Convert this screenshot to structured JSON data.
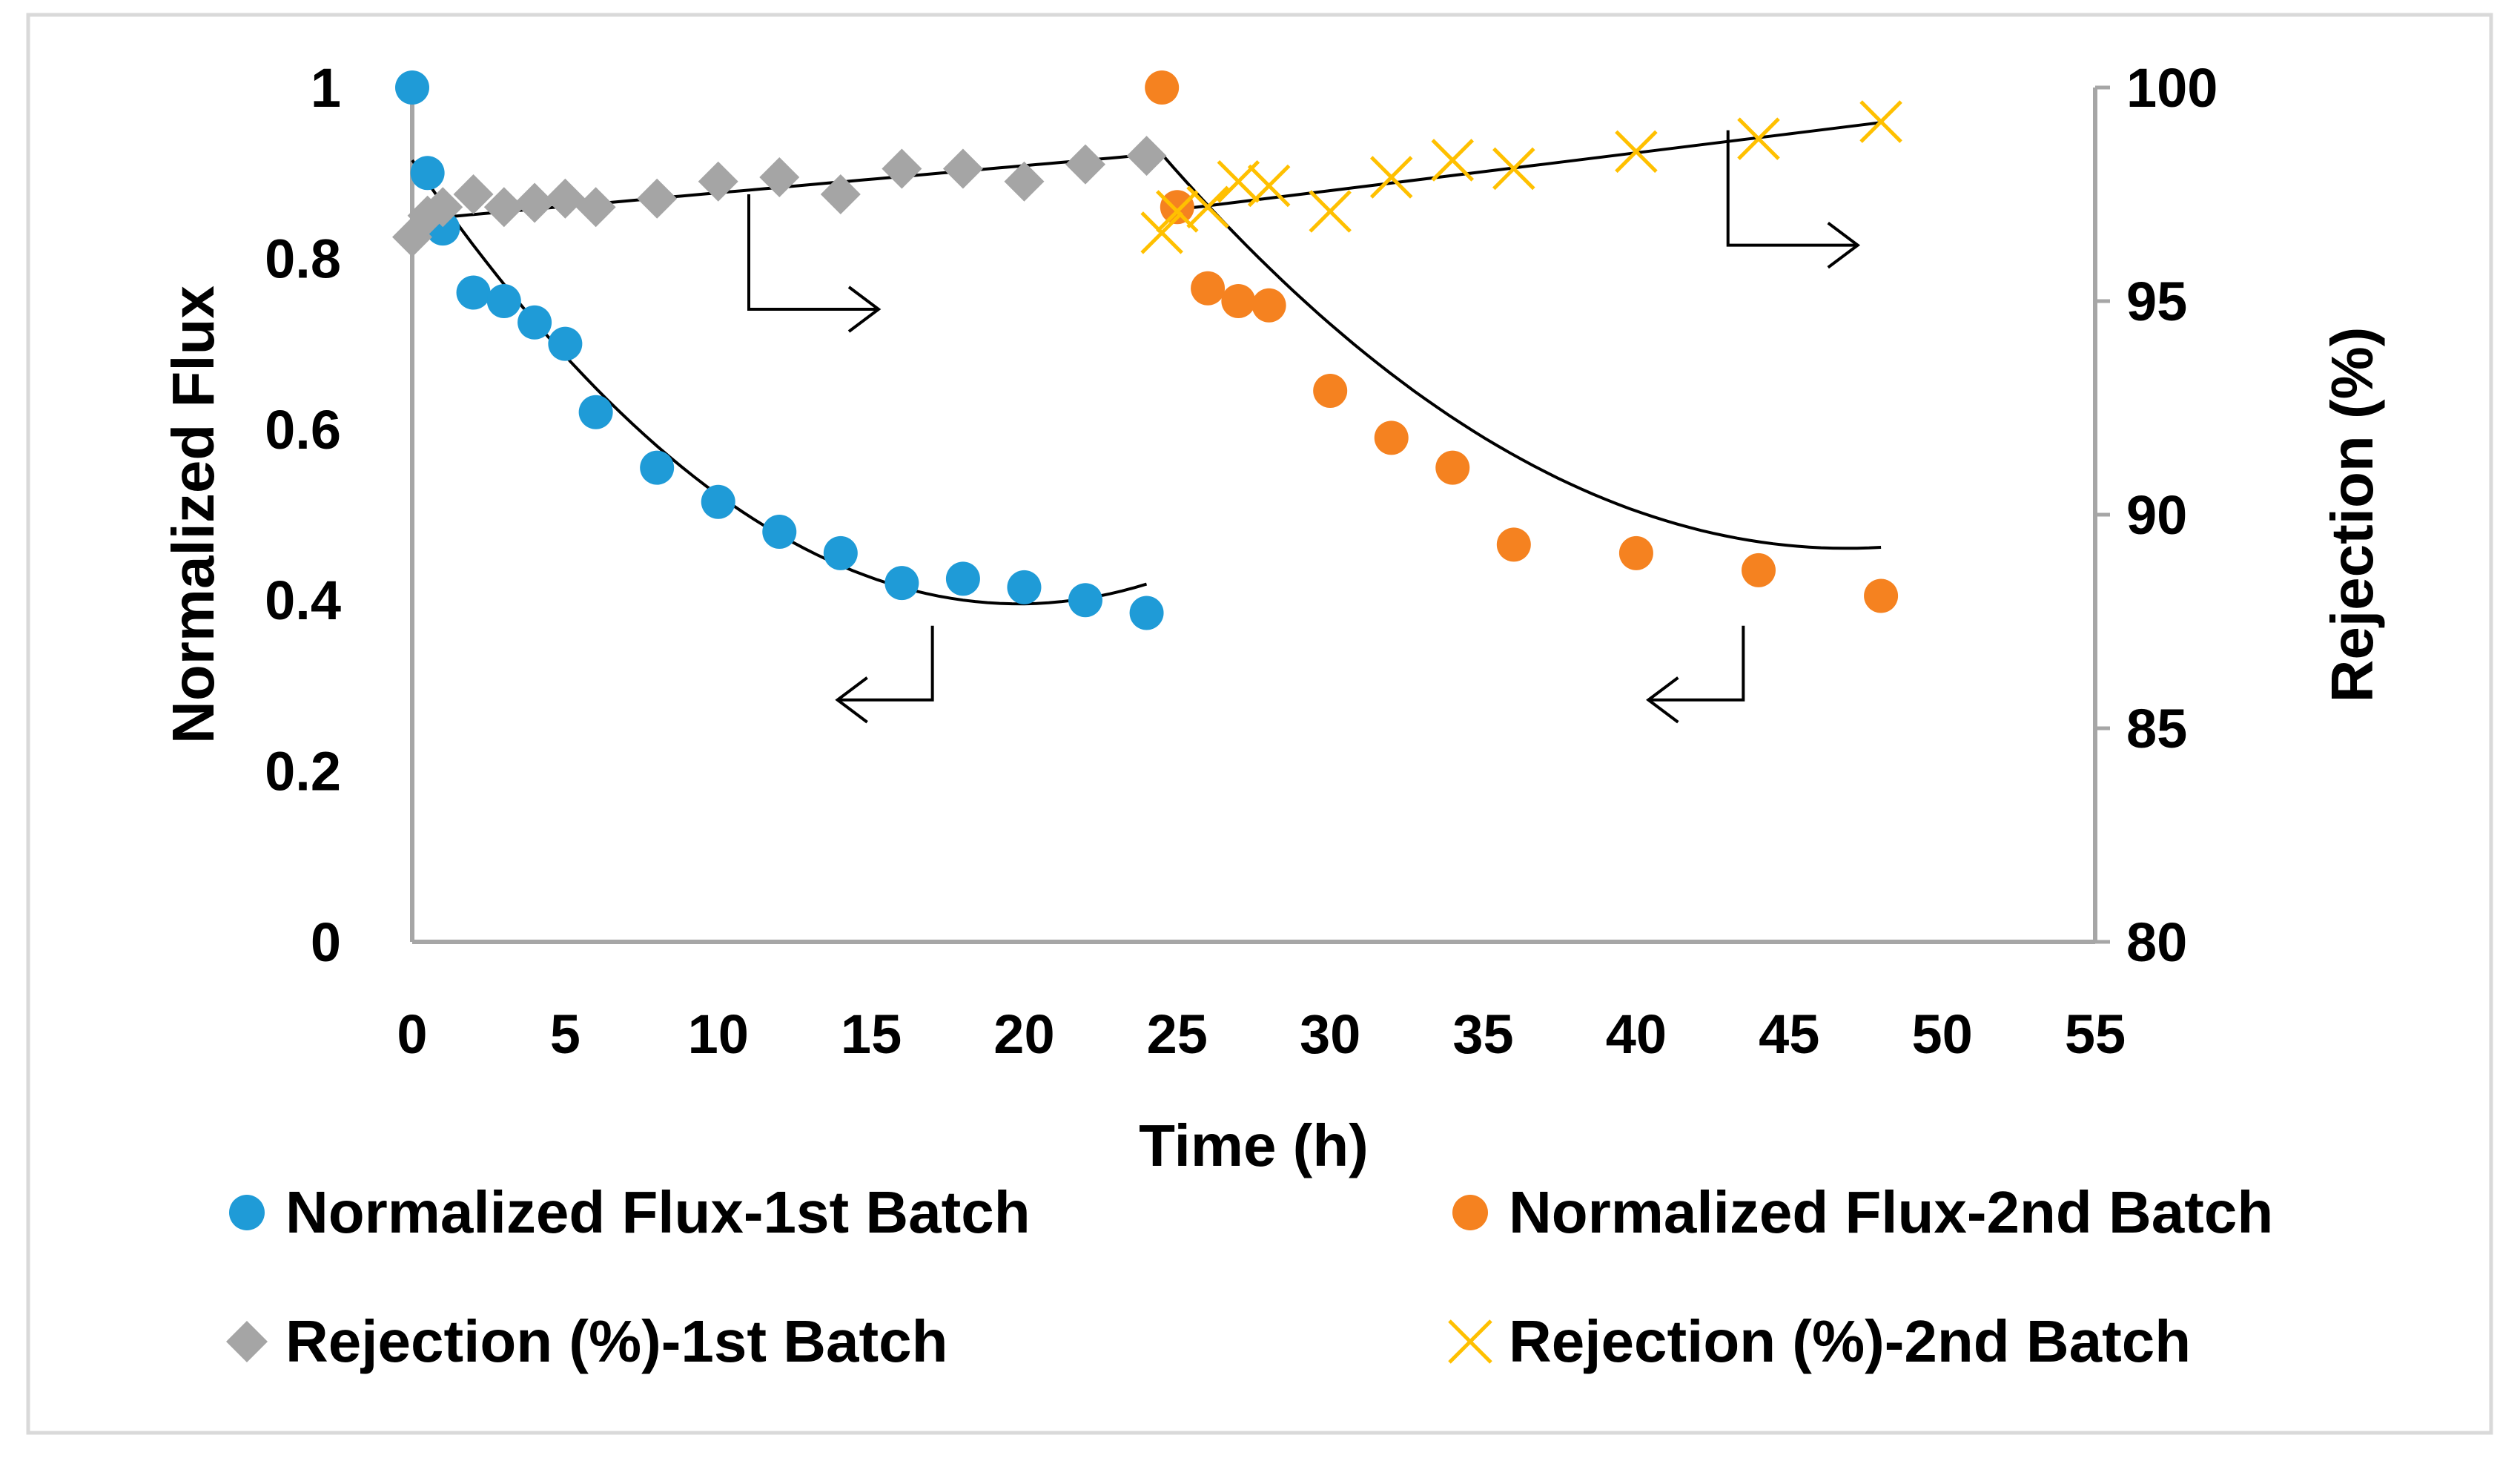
{
  "chart_data": {
    "type": "scatter",
    "xlabel": "Time (h)",
    "ylabel_left": "Normalized Flux",
    "ylabel_right": "Rejection (%)",
    "xlim": [
      0,
      55
    ],
    "ylim_left": [
      0,
      1
    ],
    "ylim_right": [
      80,
      100
    ],
    "x_ticks": [
      "0",
      "5",
      "10",
      "15",
      "20",
      "25",
      "30",
      "35",
      "40",
      "45",
      "50",
      "55"
    ],
    "y_left_ticks": [
      "0",
      "0.2",
      "0.4",
      "0.6",
      "0.8",
      "1"
    ],
    "y_right_ticks": [
      "80",
      "85",
      "90",
      "95",
      "100"
    ],
    "grid": false,
    "legend_position": "bottom",
    "series": [
      {
        "name": "Normalized Flux-1st Batch",
        "axis": "left",
        "marker": "circle",
        "color": "#1F9BD7",
        "x": [
          0,
          0.5,
          1,
          2,
          3,
          4,
          5,
          6,
          8,
          10,
          12,
          14,
          16,
          18,
          20,
          22,
          24
        ],
        "y": [
          1.0,
          0.9,
          0.835,
          0.76,
          0.75,
          0.725,
          0.7,
          0.62,
          0.555,
          0.515,
          0.48,
          0.455,
          0.42,
          0.425,
          0.415,
          0.4,
          0.385
        ]
      },
      {
        "name": "Normalized Flux-2nd Batch",
        "axis": "left",
        "marker": "circle",
        "color": "#F58220",
        "x": [
          24.5,
          25,
          26,
          27,
          28,
          30,
          32,
          34,
          36,
          40,
          44,
          48
        ],
        "y": [
          1.0,
          0.86,
          0.765,
          0.75,
          0.745,
          0.645,
          0.59,
          0.555,
          0.465,
          0.455,
          0.435,
          0.405
        ]
      },
      {
        "name": "Rejection (%)-1st Batch",
        "axis": "right",
        "marker": "diamond",
        "color": "#A5A5A5",
        "x": [
          0,
          0.5,
          1,
          2,
          3,
          4,
          5,
          6,
          8,
          10,
          12,
          14,
          16,
          18,
          20,
          22,
          24
        ],
        "y": [
          96.5,
          97.0,
          97.2,
          97.5,
          97.2,
          97.3,
          97.4,
          97.2,
          97.4,
          97.8,
          97.9,
          97.5,
          98.1,
          98.1,
          97.8,
          98.2,
          98.4
        ]
      },
      {
        "name": "Rejection (%)-2nd Batch",
        "axis": "right",
        "marker": "x",
        "color": "#FFC000",
        "x": [
          24.5,
          25,
          26,
          27,
          28,
          30,
          32,
          34,
          36,
          40,
          44,
          48
        ],
        "y": [
          96.6,
          97.1,
          97.2,
          97.8,
          97.7,
          97.1,
          97.9,
          98.3,
          98.1,
          98.5,
          98.8,
          99.2
        ]
      }
    ],
    "trendlines": [
      {
        "name": "flux-1st-batch-trend",
        "axis": "left",
        "type": "polynomial",
        "x_range": [
          0,
          24
        ],
        "coefficients": [
          0.9149,
          -0.0524,
          0.001322
        ]
      },
      {
        "name": "flux-2nd-batch-trend",
        "axis": "left",
        "type": "polynomial",
        "x_range": [
          24.5,
          48
        ],
        "coefficients": [
          0.9219,
          -0.0412,
          0.00092
        ]
      },
      {
        "name": "rejection-1st-batch-trend",
        "axis": "right",
        "type": "linear",
        "x_range": [
          0,
          24
        ],
        "coefficients": [
          96.9,
          0.0635
        ]
      },
      {
        "name": "rejection-2nd-batch-trend",
        "axis": "right",
        "type": "linear",
        "x_range": [
          24.5,
          48
        ],
        "coefficients": [
          97.1,
          0.0885
        ]
      }
    ],
    "axis_arrows": [
      {
        "name": "arrow-1st-rejection",
        "points_to": "right",
        "at": {
          "x": 11,
          "y_right": 97.5
        }
      },
      {
        "name": "arrow-2nd-rejection",
        "points_to": "right",
        "at": {
          "x": 43,
          "y_right": 99.0
        }
      },
      {
        "name": "arrow-1st-flux",
        "points_to": "left",
        "at": {
          "x": 17,
          "y_left": 0.37
        }
      },
      {
        "name": "arrow-2nd-flux",
        "points_to": "left",
        "at": {
          "x": 43.5,
          "y_left": 0.37
        }
      }
    ]
  },
  "legend": {
    "items": [
      "Normalized Flux-1st Batch",
      "Normalized Flux-2nd Batch",
      "Rejection (%)-1st Batch",
      "Rejection (%)-2nd Batch"
    ]
  }
}
